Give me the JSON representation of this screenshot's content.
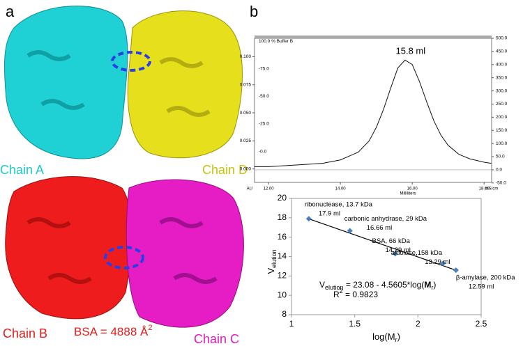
{
  "panel_a": {
    "label": "a",
    "chains": [
      "Chain A",
      "Chain D",
      "Chain B",
      "Chain C"
    ],
    "bsa": "BSA = 4888 Å",
    "bsa_sup": "2"
  },
  "panel_b": {
    "label": "b"
  },
  "chart_data": [
    {
      "type": "line",
      "x_label": "Milliliters",
      "x_left_label": "AU",
      "x_right_label": "mS/cm",
      "peak_label": "15.8 ml",
      "x": [
        11.6,
        12,
        12.5,
        13,
        13.5,
        14,
        14.5,
        14.8,
        15.0,
        15.2,
        15.4,
        15.6,
        15.8,
        16.0,
        16.2,
        16.4,
        16.6,
        16.8,
        17.0,
        17.3,
        17.6,
        18.0,
        18.2
      ],
      "series": [
        {
          "color": "#111111",
          "values": [
            0.002,
            0.002,
            0.003,
            0.004,
            0.005,
            0.008,
            0.015,
            0.025,
            0.037,
            0.053,
            0.072,
            0.09,
            0.097,
            0.093,
            0.078,
            0.06,
            0.043,
            0.03,
            0.021,
            0.013,
            0.009,
            0.006,
            0.005
          ]
        }
      ],
      "xlim": [
        11.61,
        18.21
      ],
      "xticks": [
        {
          "value": 12,
          "label": "12.00"
        },
        {
          "value": 14,
          "label": "14.00"
        },
        {
          "value": 16,
          "label": "16.00"
        },
        {
          "value": 18,
          "label": "18.00"
        }
      ],
      "ylim": [
        -0.012,
        0.1164
      ],
      "yticks": [
        {
          "value": 0,
          "label": "0.000"
        },
        {
          "value": 0.025,
          "label": "0.025"
        },
        {
          "value": 0.05,
          "label": "0.050"
        },
        {
          "value": 0.075,
          "label": "0.075"
        },
        {
          "value": 0.1,
          "label": "0.100"
        }
      ],
      "y2lim": [
        -47.9,
        500.0
      ],
      "y2ticks": [
        {
          "value": -50,
          "label": "-50.0"
        },
        {
          "value": 0,
          "label": "0.0"
        },
        {
          "value": 50,
          "label": "50.0"
        },
        {
          "value": 100,
          "label": "100.0"
        },
        {
          "value": 150,
          "label": "150.0"
        },
        {
          "value": 200,
          "label": "200.0"
        },
        {
          "value": 250,
          "label": "250.0"
        },
        {
          "value": 300,
          "label": "300.0"
        },
        {
          "value": 350,
          "label": "350.0"
        },
        {
          "value": 400,
          "label": "400.0"
        },
        {
          "value": 450,
          "label": "450.0"
        },
        {
          "value": 500,
          "label": "500.0"
        }
      ],
      "y3lim": [
        -28,
        102.6
      ],
      "y3ticks": [
        {
          "value": 0,
          "label": "-0.0"
        },
        {
          "value": 25,
          "label": "-25.0"
        },
        {
          "value": 50,
          "label": "-50.0"
        },
        {
          "value": 75,
          "label": "-75.0"
        },
        {
          "value": 100,
          "label": "100.0 % Buffer B"
        }
      ]
    },
    {
      "type": "scatter",
      "color": "#4a7fc1",
      "x": [
        1.137,
        1.462,
        1.82,
        2.199,
        2.301
      ],
      "values": [
        17.9,
        16.66,
        14.29,
        13.29,
        12.59
      ],
      "point_labels": [
        [
          "ribonuclease, 13.7 kDa",
          "17.9 ml"
        ],
        [
          "carbonic anhydrase, 29 kDa",
          "16.66 ml"
        ],
        [
          "BSA, 66 kDa",
          "14.29 ml"
        ],
        [
          "aldolase,158 kDa",
          "13.29 ml"
        ],
        [
          "β-amylase, 200 kDa",
          "12.59 ml"
        ]
      ],
      "fit": {
        "intercept": 23.08,
        "slope": -4.5605
      },
      "equation": [
        "V",
        "elution",
        " = 23.08 - 4.5605*log(",
        "M",
        "r",
        ")"
      ],
      "r2": [
        "R",
        "2",
        " = 0.9823"
      ],
      "y_label": [
        "V",
        "elution"
      ],
      "x_label": [
        "log(M",
        "r",
        ")"
      ],
      "xlim": [
        1,
        2.5
      ],
      "xticks": [
        1,
        1.5,
        2,
        2.5
      ],
      "ylim": [
        8,
        20
      ],
      "yticks": [
        8,
        10,
        12,
        14,
        16,
        18,
        20
      ]
    }
  ]
}
